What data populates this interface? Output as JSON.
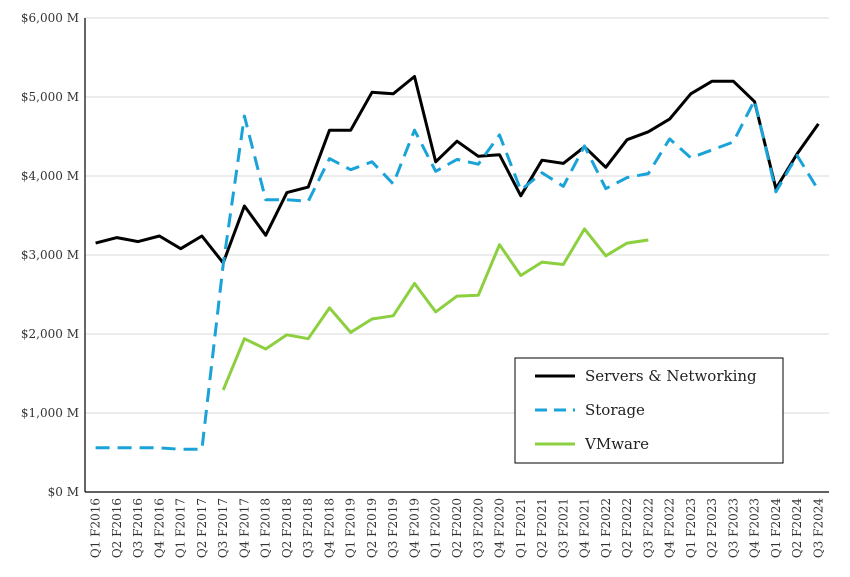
{
  "chart_data": {
    "type": "line",
    "title": "",
    "xlabel": "",
    "ylabel": "",
    "ylim": [
      0,
      6000
    ],
    "y_ticks": [
      0,
      1000,
      2000,
      3000,
      4000,
      5000,
      6000
    ],
    "y_tick_labels": [
      "$0 M",
      "$1,000 M",
      "$2,000 M",
      "$3,000 M",
      "$4,000 M",
      "$5,000 M",
      "$6,000 M"
    ],
    "grid": "horizontal",
    "legend_position": "bottom-right",
    "categories": [
      "Q1 F2016",
      "Q2 F2016",
      "Q3 F2016",
      "Q4 F2016",
      "Q1 F2017",
      "Q2 F2017",
      "Q3 F2017",
      "Q4 F2017",
      "Q1 F2018",
      "Q2 F2018",
      "Q3 F2018",
      "Q4 F2018",
      "Q1 F2019",
      "Q2 F2019",
      "Q3 F2019",
      "Q4 F2019",
      "Q1 F2020",
      "Q2 F2020",
      "Q3 F2020",
      "Q4 F2020",
      "Q1 F2021",
      "Q2 F2021",
      "Q3 F2021",
      "Q4 F2021",
      "Q1 F2022",
      "Q2 F2022",
      "Q3 F2022",
      "Q4 F2022",
      "Q1 F2023",
      "Q2 F2023",
      "Q3 F2023",
      "Q4 F2023",
      "Q1 F2024",
      "Q2 F2024",
      "Q3 F2024"
    ],
    "series": [
      {
        "name": "Servers & Networking",
        "color": "#000000",
        "dash": "solid",
        "values": [
          3150,
          3220,
          3170,
          3240,
          3080,
          3240,
          2900,
          3620,
          3250,
          3790,
          3860,
          4580,
          4580,
          5060,
          5040,
          5260,
          4180,
          4440,
          4250,
          4270,
          3750,
          4200,
          4160,
          4370,
          4110,
          4460,
          4560,
          4720,
          5040,
          5200,
          5200,
          4940,
          3840,
          4280,
          4660
        ]
      },
      {
        "name": "Storage",
        "color": "#1aa3d9",
        "dash": "dashed",
        "values": [
          560,
          560,
          560,
          560,
          540,
          540,
          2880,
          4760,
          3700,
          3700,
          3680,
          4220,
          4080,
          4180,
          3900,
          4580,
          4060,
          4210,
          4150,
          4520,
          3820,
          4040,
          3870,
          4380,
          3840,
          3980,
          4030,
          4470,
          4230,
          4330,
          4430,
          4960,
          3800,
          4260,
          3820
        ]
      },
      {
        "name": "VMware",
        "color": "#8ccf3f",
        "dash": "solid",
        "values": [
          null,
          null,
          null,
          null,
          null,
          null,
          1290,
          1940,
          1810,
          1990,
          1940,
          2330,
          2020,
          2190,
          2230,
          2640,
          2280,
          2480,
          2490,
          3130,
          2740,
          2910,
          2880,
          3330,
          2990,
          3150,
          3190,
          null,
          null,
          null,
          null,
          null,
          null,
          null,
          null
        ]
      }
    ]
  }
}
